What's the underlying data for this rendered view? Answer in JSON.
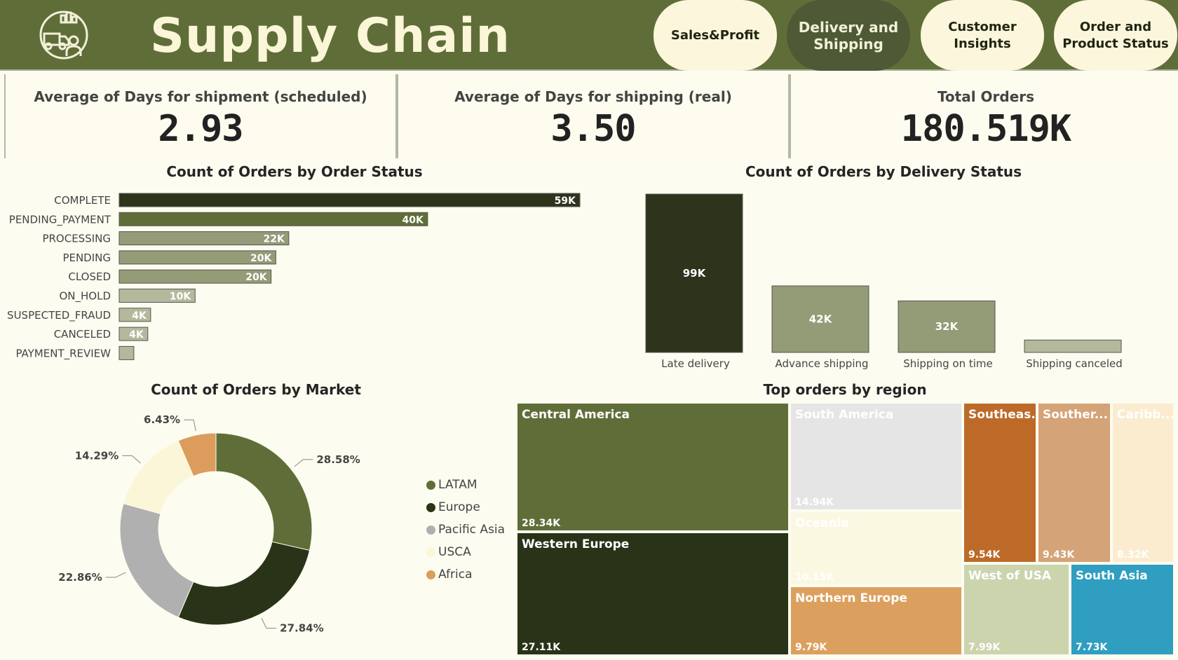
{
  "header": {
    "title": "Supply Chain",
    "nav": [
      {
        "label": "Sales&Profit",
        "active": false
      },
      {
        "label": "Delivery and\nShipping",
        "active": true
      },
      {
        "label": "Customer\nInsights",
        "active": false
      },
      {
        "label": "Order and\nProduct Status",
        "active": false
      }
    ]
  },
  "kpis": [
    {
      "label": "Average of Days for shipment (scheduled)",
      "value": "2.93"
    },
    {
      "label": "Average of Days for shipping (real)",
      "value": "3.50"
    },
    {
      "label": "Total Orders",
      "value": "180.519K"
    }
  ],
  "chart_data": [
    {
      "type": "bar",
      "orientation": "horizontal",
      "title": "Count of Orders by Order Status",
      "categories": [
        "COMPLETE",
        "PENDING_PAYMENT",
        "PROCESSING",
        "PENDING",
        "CLOSED",
        "ON_HOLD",
        "SUSPECTED_FRAUD",
        "CANCELED",
        "PAYMENT_REVIEW"
      ],
      "values": [
        59491,
        39832,
        21902,
        20227,
        19616,
        9804,
        4062,
        3692,
        1893
      ],
      "data_labels": [
        "59K",
        "40K",
        "22K",
        "20K",
        "20K",
        "10K",
        "4K",
        "4K",
        ""
      ],
      "colors": [
        "#2e331c",
        "#5f6e38",
        "#949b77",
        "#949b77",
        "#949b77",
        "#b4b99b",
        "#b4b99b",
        "#b4b99b",
        "#b4b99b"
      ]
    },
    {
      "type": "bar",
      "title": "Count of Orders by Delivery Status",
      "categories": [
        "Late delivery",
        "Advance shipping",
        "Shipping on time",
        "Shipping canceled"
      ],
      "values": [
        98977,
        41592,
        32196,
        7754
      ],
      "data_labels": [
        "99K",
        "42K",
        "32K",
        ""
      ],
      "colors": [
        "#2e331c",
        "#949b77",
        "#949b77",
        "#b4b99b"
      ]
    },
    {
      "type": "pie",
      "donut": true,
      "title": "Count of Orders by Market",
      "categories": [
        "LATAM",
        "Europe",
        "Pacific Asia",
        "USCA",
        "Africa"
      ],
      "values": [
        28.58,
        27.84,
        22.86,
        14.29,
        6.43
      ],
      "data_labels": [
        "28.58%",
        "27.84%",
        "22.86%",
        "14.29%",
        "6.43%"
      ],
      "colors": [
        "#5f6e38",
        "#283318",
        "#b0b0b0",
        "#fbf6d8",
        "#dc9c5c"
      ],
      "legend": "right"
    },
    {
      "type": "treemap",
      "title": "Top orders by region",
      "items": [
        {
          "name": "Central America",
          "value": "28.34K",
          "color": "#5f6e38",
          "text": "#ffffff"
        },
        {
          "name": "Western Europe",
          "value": "27.11K",
          "color": "#283318",
          "text": "#ffffff"
        },
        {
          "name": "South America",
          "value": "14.94K",
          "color": "#e5e5e5",
          "text": "#ffffff"
        },
        {
          "name": "Oceania",
          "value": "10.15K",
          "color": "#fbf8e2",
          "text": "#ffffff"
        },
        {
          "name": "Northern Europe",
          "value": "9.79K",
          "color": "#dca05e",
          "text": "#ffffff"
        },
        {
          "name": "Southeas...",
          "value": "9.54K",
          "color": "#bd6a29",
          "text": "#ffffff"
        },
        {
          "name": "Souther...",
          "value": "9.43K",
          "color": "#d4a377",
          "text": "#ffffff"
        },
        {
          "name": "Caribb...",
          "value": "8.32K",
          "color": "#fbecd0",
          "text": "#ffffff"
        },
        {
          "name": "West of USA",
          "value": "7.99K",
          "color": "#ccd4ae",
          "text": "#ffffff"
        },
        {
          "name": "South Asia",
          "value": "7.73K",
          "color": "#2f9ec0",
          "text": "#ffffff"
        }
      ]
    }
  ]
}
